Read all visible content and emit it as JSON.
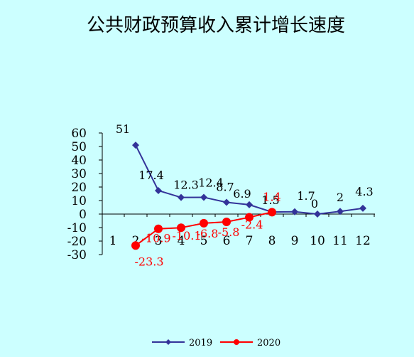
{
  "chart_data": {
    "type": "line",
    "title": "公共财政预算收入累计增长速度",
    "xlabel": "",
    "ylabel": "",
    "categories": [
      "1",
      "2",
      "3",
      "4",
      "5",
      "6",
      "7",
      "8",
      "9",
      "10",
      "11",
      "12"
    ],
    "ylim": [
      -30,
      60
    ],
    "yticks": [
      "60",
      "50",
      "40",
      "30",
      "20",
      "10",
      "0",
      "-10",
      "-20",
      "-30"
    ],
    "grid": false,
    "legend_position": "bottom",
    "series": [
      {
        "name": "2019",
        "color": "#333399",
        "marker": "diamond",
        "values": [
          null,
          51,
          17.4,
          12.3,
          12.4,
          8.7,
          6.9,
          1.5,
          1.7,
          0,
          2,
          4.3
        ],
        "labels": [
          "",
          "51",
          "17.4",
          "12.3",
          "12.4",
          "8.7",
          "6.9",
          "1.5",
          "1.7",
          "0",
          "2",
          "4.3"
        ]
      },
      {
        "name": "2020",
        "color": "#ff0000",
        "marker": "circle",
        "values": [
          null,
          -23.3,
          -10.9,
          -10.1,
          -6.8,
          -5.8,
          -2.4,
          1.4,
          null,
          null,
          null,
          null
        ],
        "labels": [
          "",
          "-23.3",
          "-10.9",
          "-10.1",
          "-6.8",
          "-5.8",
          "-2.4",
          "1.4",
          "",
          "",
          "",
          ""
        ]
      }
    ]
  }
}
